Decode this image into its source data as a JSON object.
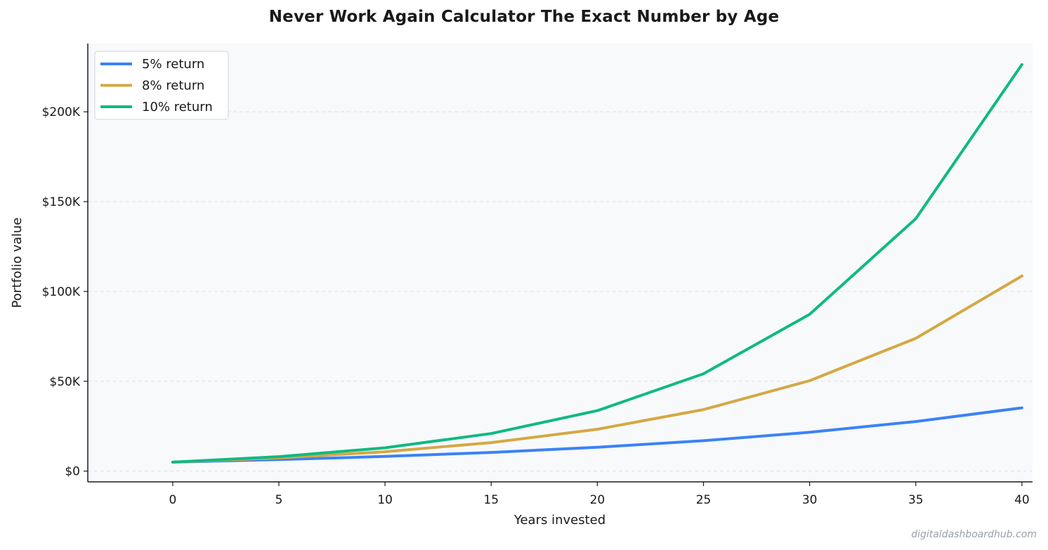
{
  "chart_data": {
    "type": "line",
    "title": "Never Work Again Calculator  The Exact Number by Age",
    "xlabel": "Years invested",
    "ylabel": "Portfolio value",
    "x": [
      0,
      5,
      10,
      15,
      20,
      25,
      30,
      35,
      40
    ],
    "xticks": [
      0,
      5,
      10,
      15,
      20,
      25,
      30,
      35,
      40
    ],
    "yticks": [
      0,
      50000,
      100000,
      150000,
      200000
    ],
    "ytick_labels": [
      "$0",
      "$50K",
      "$100K",
      "$150K",
      "$200K"
    ],
    "xlim": [
      -4,
      40.5
    ],
    "ylim": [
      -6000,
      238000
    ],
    "grid": "horizontal dashed",
    "legend_position": "top-left",
    "series": [
      {
        "name": "5% return",
        "color": "#3b82f6",
        "values": [
          5000,
          6380,
          8140,
          10400,
          13270,
          16930,
          21610,
          27580,
          35200
        ]
      },
      {
        "name": "8% return",
        "color": "#d4a843",
        "values": [
          5000,
          7350,
          10790,
          15860,
          23300,
          34240,
          50310,
          73930,
          108620
        ]
      },
      {
        "name": "10% return",
        "color": "#10b981",
        "values": [
          5000,
          8050,
          12970,
          20890,
          33640,
          54170,
          87250,
          140510,
          226300
        ]
      }
    ]
  },
  "watermark": "digitaldashboardhub.com"
}
